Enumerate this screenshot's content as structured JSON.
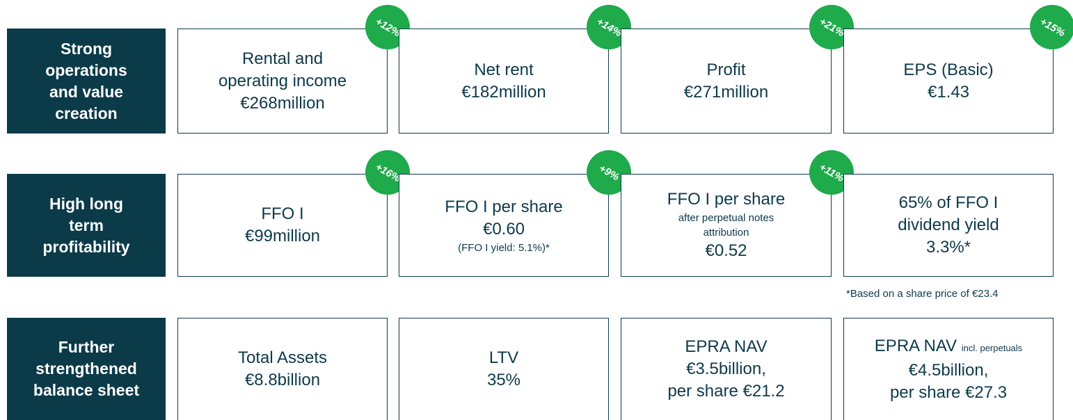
{
  "rows": [
    {
      "label": [
        "Strong",
        "operations",
        "and value",
        "creation"
      ],
      "cards": [
        {
          "lines": [
            "Rental and",
            "operating income",
            "€268million"
          ],
          "badge": "+12%"
        },
        {
          "lines": [
            "Net rent",
            "€182million"
          ],
          "badge": "+14%"
        },
        {
          "lines": [
            "Profit",
            "€271million"
          ],
          "badge": "+21%"
        },
        {
          "lines": [
            "EPS (Basic)",
            "€1.43"
          ],
          "badge": "+15%"
        }
      ]
    },
    {
      "label": [
        "High long",
        "term",
        "profitability"
      ],
      "cards": [
        {
          "lines": [
            "FFO I",
            "€99million"
          ],
          "badge": "+16%"
        },
        {
          "lines": [
            "FFO I per share",
            "€0.60",
            "(FFO I yield: 5.1%)*"
          ],
          "badge": "+9%"
        },
        {
          "lines": [
            "FFO I per share",
            "after perpetual notes",
            "attribution",
            "€0.52"
          ],
          "badge": "+11%"
        },
        {
          "lines": [
            "65% of FFO I",
            "dividend yield",
            "3.3%*"
          ]
        }
      ]
    },
    {
      "label": [
        "Further",
        "strengthened",
        "balance sheet"
      ],
      "cards": [
        {
          "lines": [
            "Total Assets",
            "€8.8billion"
          ]
        },
        {
          "lines": [
            "LTV",
            "35%"
          ]
        },
        {
          "lines": [
            "EPRA NAV",
            "€3.5billion,",
            "per share €21.2"
          ]
        },
        {
          "lines": [
            [
              "EPRA NAV",
              "incl. perpetuals"
            ],
            "€4.5billion,",
            "per share €27.3"
          ]
        }
      ]
    }
  ],
  "footnote": "*Based on a share price of €23.4"
}
